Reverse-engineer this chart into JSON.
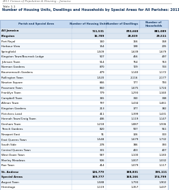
{
  "header_text": "2011 Census of Population & Housing – Jamaica",
  "table_label": "Table 1.1",
  "title": "Number of Housing Units, Dwellings and Households by Special Areas for All Parishes: 2011",
  "col_headers": [
    "Parish and Special Area",
    "Number of Housing Units",
    "Number of Dwellings",
    "Number of\nHouseholds"
  ],
  "header_bg": "#c5d9f1",
  "bold_bg": "#dce6f1",
  "rows": [
    [
      "All Jamaica",
      "711,531",
      "893,668",
      "881,089",
      "bold"
    ],
    [
      "Kingston",
      "16,789",
      "28,839",
      "29,511",
      "bold"
    ],
    [
      "Port Royal",
      "160",
      "156",
      "158",
      "normal"
    ],
    [
      "Harbour View",
      "154",
      "198",
      "205",
      "normal"
    ],
    [
      "Springfield",
      "1,509",
      "1,639",
      "1,679",
      "normal"
    ],
    [
      "Kingston Town/Bourrock Lodge",
      "507",
      "456",
      "497",
      "normal"
    ],
    [
      "Johnson Town",
      "514",
      "754",
      "763",
      "normal"
    ],
    [
      "Norman Gardens",
      "870",
      "729",
      "733",
      "normal"
    ],
    [
      "Bournemouth Gardens",
      "479",
      "1,140",
      "1,172",
      "normal"
    ],
    [
      "Rollington Town",
      "1,520",
      "2,116",
      "2,177",
      "normal"
    ],
    [
      "Newton Square",
      "666",
      "777",
      "793",
      "normal"
    ],
    [
      "Passmore Town",
      "850",
      "1,675",
      "1,724",
      "normal"
    ],
    [
      "Franklyn Town",
      "779",
      "1,293",
      "1,340",
      "normal"
    ],
    [
      "Campbell Town",
      "365",
      "340",
      "348",
      "normal"
    ],
    [
      "Allman Town",
      "797",
      "1,434",
      "1,461",
      "normal"
    ],
    [
      "Kingston Gardens",
      "213",
      "377",
      "382",
      "normal"
    ],
    [
      "Fletchers Land",
      "411",
      "1,399",
      "1,431",
      "normal"
    ],
    [
      "Hannah Town/Craig Town",
      "446",
      "1,119",
      "1,147",
      "normal"
    ],
    [
      "Denham Town",
      "1,218",
      "1,887",
      "1,936",
      "normal"
    ],
    [
      "Trench Gardens",
      "820",
      "907",
      "961",
      "normal"
    ],
    [
      "Newport East",
      "91",
      "326",
      "333",
      "normal"
    ],
    [
      "East Queens Town",
      "1,548",
      "1,679",
      "1,732",
      "normal"
    ],
    [
      "South Side",
      "278",
      "386",
      "393",
      "normal"
    ],
    [
      "Central Queens Town",
      "331",
      "403",
      "407",
      "normal"
    ],
    [
      "West Down Town",
      "587",
      "1,100",
      "1,183",
      "normal"
    ],
    [
      "Manley Meadows",
      "506",
      "1,007",
      "1,032",
      "normal"
    ],
    [
      "Rae Town",
      "414",
      "1,079",
      "1,117",
      "normal"
    ],
    [
      "",
      "",
      "",
      "",
      "spacer"
    ],
    [
      "St. Andrew",
      "126,779",
      "188,831",
      "195,111",
      "bold"
    ],
    [
      "Special Areas",
      "109,777",
      "168,166",
      "174,799",
      "bold"
    ],
    [
      "August Town",
      "1,588",
      "1,793",
      "1,902",
      "normal"
    ],
    [
      "Hermitage",
      "1,119",
      "1,357",
      "1,437",
      "normal"
    ]
  ],
  "title_color": "#17375e",
  "header_color": "#17375e",
  "normal_row_bg_odd": "#ffffff",
  "normal_row_bg_even": "#f2f7fc"
}
